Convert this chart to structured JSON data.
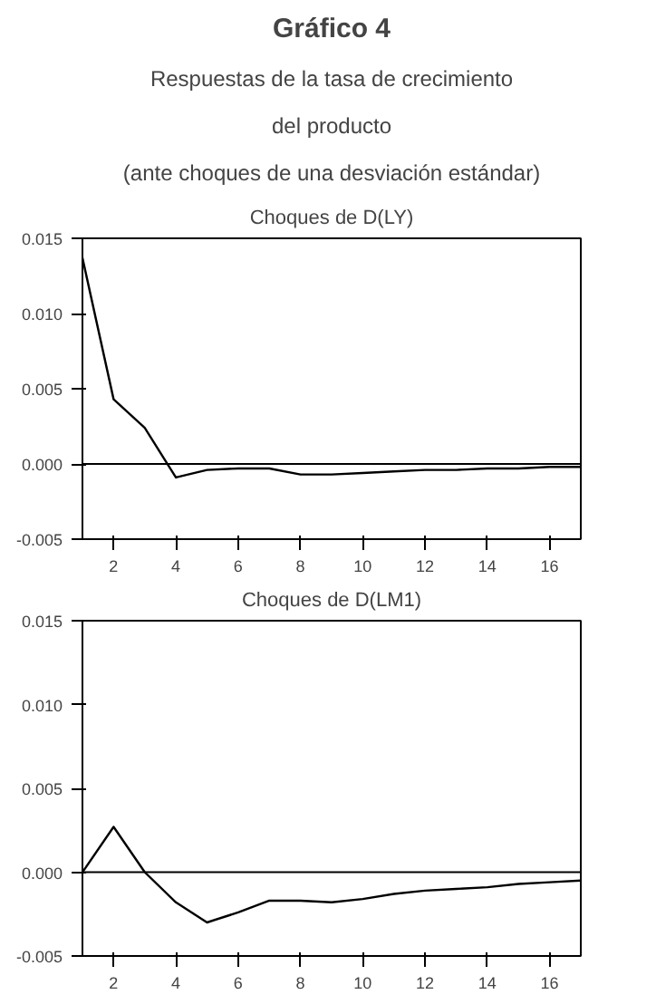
{
  "chart_data": [
    {
      "type": "line",
      "title": "Choques de D(LY)",
      "annotations": [
        "Gráfico 4",
        "Respuestas de la tasa de crecimiento",
        "del producto",
        "(ante choques de una desviación estándar)"
      ],
      "x": [
        1,
        2,
        3,
        4,
        5,
        6,
        7,
        8,
        9,
        10,
        11,
        12,
        13,
        14,
        15,
        16,
        17
      ],
      "series": [
        {
          "color": "#000000",
          "values": [
            0.0137,
            0.0043,
            0.0024,
            -0.0009,
            -0.0004,
            -0.0003,
            -0.0003,
            -0.0007,
            -0.0007,
            -0.0006,
            -0.0005,
            -0.0004,
            -0.0004,
            -0.0003,
            -0.0003,
            -0.0002,
            -0.0002
          ]
        }
      ],
      "xlim": [
        1,
        17
      ],
      "xticks": [
        2,
        4,
        6,
        8,
        10,
        12,
        14,
        16
      ],
      "ylim": [
        -0.005,
        0.015
      ],
      "yticks": [
        {
          "value": -0.005,
          "label": "-0.005"
        },
        {
          "value": 0,
          "label": "0.000"
        },
        {
          "value": 0.005,
          "label": "0.005"
        },
        {
          "value": 0.01,
          "label": "0.010"
        },
        {
          "value": 0.015,
          "label": "0.015"
        }
      ],
      "ref_lines": [
        {
          "axis": "y",
          "value": 0,
          "color": "#000000"
        }
      ],
      "grid": false
    },
    {
      "type": "line",
      "title": "Choques de D(LM1)",
      "x": [
        1,
        2,
        3,
        4,
        5,
        6,
        7,
        8,
        9,
        10,
        11,
        12,
        13,
        14,
        15,
        16,
        17
      ],
      "series": [
        {
          "color": "#000000",
          "values": [
            0.0,
            0.0027,
            0.0,
            -0.0018,
            -0.003,
            -0.0024,
            -0.0017,
            -0.0017,
            -0.0018,
            -0.0016,
            -0.0013,
            -0.0011,
            -0.001,
            -0.0009,
            -0.0007,
            -0.0006,
            -0.0005
          ]
        }
      ],
      "xlim": [
        1,
        17
      ],
      "xticks": [
        2,
        4,
        6,
        8,
        10,
        12,
        14,
        16
      ],
      "ylim": [
        -0.005,
        0.015
      ],
      "yticks": [
        {
          "value": -0.005,
          "label": "-0.005"
        },
        {
          "value": 0,
          "label": "0.000"
        },
        {
          "value": 0.005,
          "label": "0.005"
        },
        {
          "value": 0.01,
          "label": "0.010"
        },
        {
          "value": 0.015,
          "label": "0.015"
        }
      ],
      "ref_lines": [
        {
          "axis": "y",
          "value": 0,
          "color": "#000000"
        }
      ],
      "grid": false
    }
  ]
}
